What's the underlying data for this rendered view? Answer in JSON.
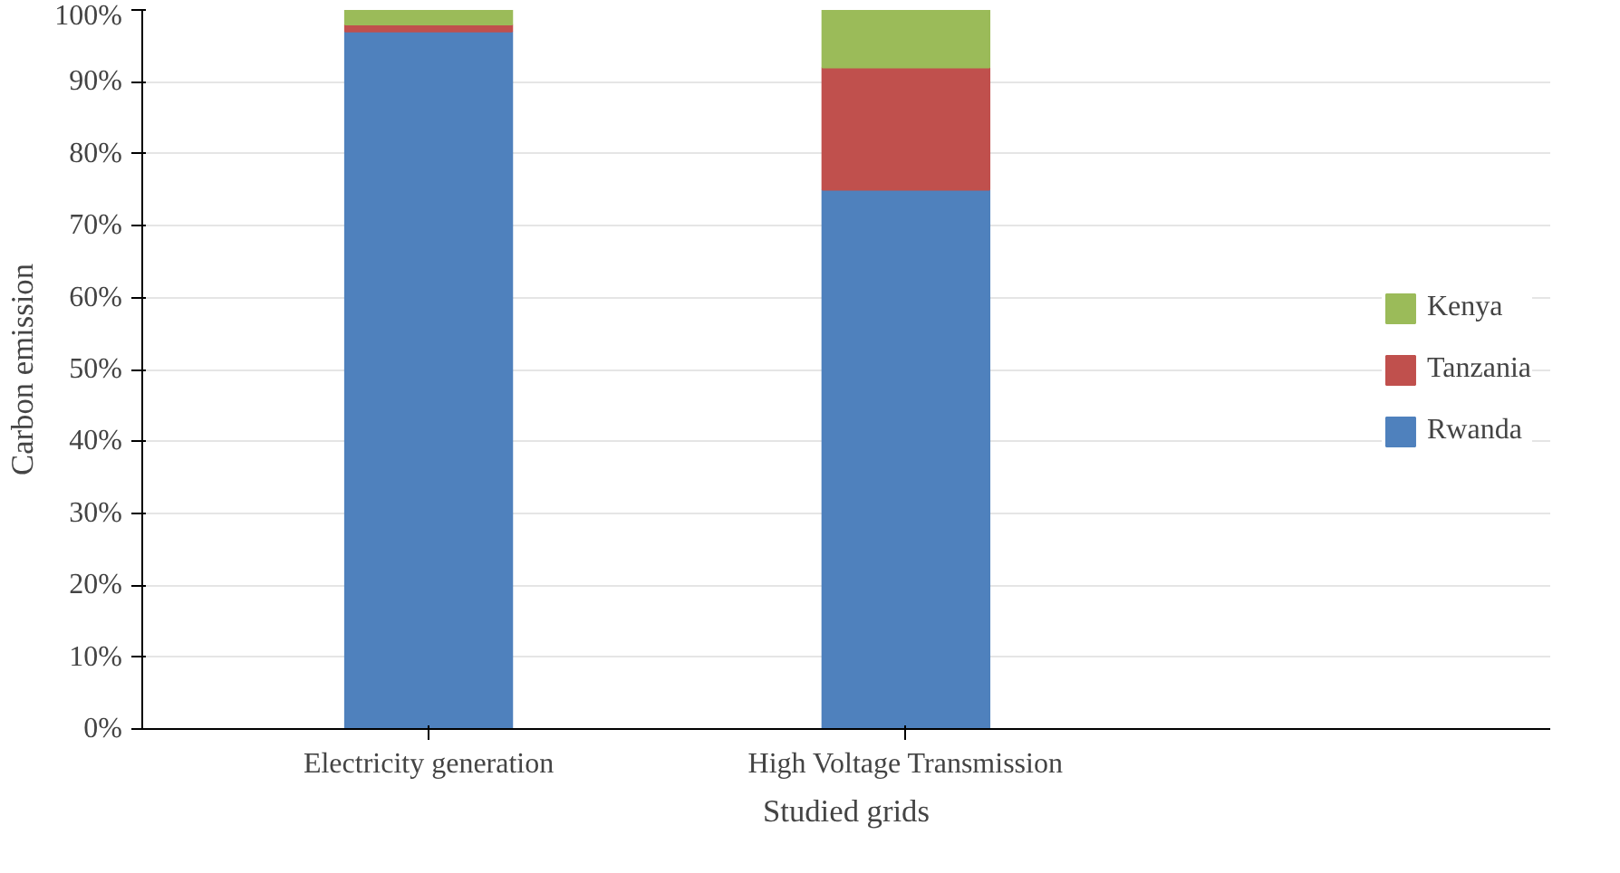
{
  "chart_data": {
    "type": "bar",
    "stacked": true,
    "xlabel": "Studied grids",
    "ylabel": "Carbon emission",
    "categories": [
      "Electricity generation",
      "High Voltage Transmission"
    ],
    "series": [
      {
        "name": "Rwanda",
        "color": "#4f81bd",
        "values": [
          97,
          75
        ]
      },
      {
        "name": "Tanzania",
        "color": "#c0504d",
        "values": [
          1,
          17
        ]
      },
      {
        "name": "Kenya",
        "color": "#9bbb59",
        "values": [
          2,
          8
        ]
      }
    ],
    "ylim": [
      0,
      100
    ],
    "yticks": [
      {
        "value": 0,
        "label": "0%"
      },
      {
        "value": 10,
        "label": "10%"
      },
      {
        "value": 20,
        "label": "20%"
      },
      {
        "value": 30,
        "label": "30%"
      },
      {
        "value": 40,
        "label": "40%"
      },
      {
        "value": 50,
        "label": "50%"
      },
      {
        "value": 60,
        "label": "60%"
      },
      {
        "value": 70,
        "label": "70%"
      },
      {
        "value": 80,
        "label": "80%"
      },
      {
        "value": 90,
        "label": "90%"
      },
      {
        "value": 100,
        "label": "100%"
      }
    ],
    "grid": "y",
    "legend": "right"
  }
}
